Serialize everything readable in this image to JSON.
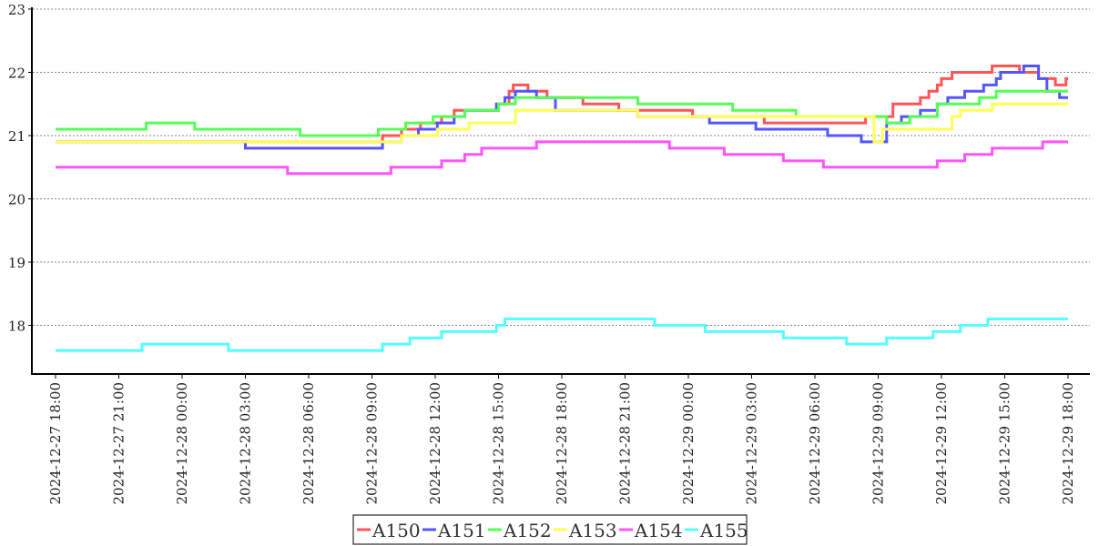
{
  "chart_data": {
    "type": "line",
    "title": "",
    "xlabel": "",
    "ylabel": "",
    "ylim": [
      17.23,
      23
    ],
    "yticks": [
      "18",
      "19",
      "20",
      "21",
      "22",
      "23"
    ],
    "xlim_hours": [
      0,
      48
    ],
    "x_tick_labels": [
      "2024-12-27 18:00",
      "2024-12-27 21:00",
      "2024-12-28 00:00",
      "2024-12-28 03:00",
      "2024-12-28 06:00",
      "2024-12-28 09:00",
      "2024-12-28 12:00",
      "2024-12-28 15:00",
      "2024-12-28 18:00",
      "2024-12-28 21:00",
      "2024-12-29 00:00",
      "2024-12-29 03:00",
      "2024-12-29 06:00",
      "2024-12-29 09:00",
      "2024-12-29 12:00",
      "2024-12-29 15:00",
      "2024-12-29 18:00"
    ],
    "grid": "horizontal dashed",
    "legend_position": "bottom-center",
    "x_unit_note": "series points are [hours since 2024-12-27 18:00, value], step-wise",
    "series": [
      {
        "name": "A150",
        "color": "#ff5555",
        "points": [
          [
            0,
            20.9
          ],
          [
            15.5,
            21.0
          ],
          [
            16.4,
            21.1
          ],
          [
            17.3,
            21.2
          ],
          [
            18.3,
            21.3
          ],
          [
            18.9,
            21.4
          ],
          [
            21.0,
            21.5
          ],
          [
            21.5,
            21.7
          ],
          [
            21.7,
            21.8
          ],
          [
            22.4,
            21.7
          ],
          [
            23.3,
            21.6
          ],
          [
            25.0,
            21.5
          ],
          [
            26.7,
            21.4
          ],
          [
            30.2,
            21.3
          ],
          [
            33.6,
            21.2
          ],
          [
            38.4,
            21.3
          ],
          [
            39.7,
            21.5
          ],
          [
            41.0,
            21.6
          ],
          [
            41.4,
            21.7
          ],
          [
            41.8,
            21.8
          ],
          [
            42.0,
            21.9
          ],
          [
            42.5,
            22.0
          ],
          [
            44.4,
            22.1
          ],
          [
            45.7,
            22.0
          ],
          [
            46.6,
            21.9
          ],
          [
            47.4,
            21.8
          ],
          [
            47.9,
            21.9
          ],
          [
            48,
            21.9
          ]
        ]
      },
      {
        "name": "A151",
        "color": "#5555ff",
        "points": [
          [
            0,
            20.9
          ],
          [
            9.0,
            20.8
          ],
          [
            15.5,
            20.9
          ],
          [
            16.4,
            21.0
          ],
          [
            17.2,
            21.1
          ],
          [
            18.1,
            21.2
          ],
          [
            18.9,
            21.3
          ],
          [
            19.4,
            21.4
          ],
          [
            20.9,
            21.5
          ],
          [
            21.3,
            21.6
          ],
          [
            21.8,
            21.7
          ],
          [
            22.8,
            21.6
          ],
          [
            23.7,
            21.4
          ],
          [
            27.6,
            21.3
          ],
          [
            31.0,
            21.2
          ],
          [
            33.2,
            21.1
          ],
          [
            36.6,
            21.0
          ],
          [
            38.2,
            20.9
          ],
          [
            39.4,
            21.2
          ],
          [
            40.1,
            21.3
          ],
          [
            41.0,
            21.4
          ],
          [
            41.8,
            21.5
          ],
          [
            42.3,
            21.6
          ],
          [
            43.1,
            21.7
          ],
          [
            44.0,
            21.8
          ],
          [
            44.6,
            21.9
          ],
          [
            44.8,
            22.0
          ],
          [
            45.9,
            22.1
          ],
          [
            46.6,
            21.9
          ],
          [
            47.0,
            21.7
          ],
          [
            47.6,
            21.6
          ],
          [
            48,
            21.6
          ]
        ]
      },
      {
        "name": "A152",
        "color": "#55ff55",
        "points": [
          [
            0,
            21.1
          ],
          [
            4.3,
            21.2
          ],
          [
            6.6,
            21.1
          ],
          [
            11.6,
            21.0
          ],
          [
            15.3,
            21.1
          ],
          [
            16.6,
            21.2
          ],
          [
            17.9,
            21.3
          ],
          [
            19.4,
            21.4
          ],
          [
            21.0,
            21.5
          ],
          [
            21.8,
            21.6
          ],
          [
            27.6,
            21.5
          ],
          [
            32.1,
            21.4
          ],
          [
            35.1,
            21.3
          ],
          [
            39.4,
            21.2
          ],
          [
            40.5,
            21.3
          ],
          [
            41.8,
            21.5
          ],
          [
            43.8,
            21.6
          ],
          [
            44.6,
            21.7
          ],
          [
            48,
            21.7
          ]
        ]
      },
      {
        "name": "A153",
        "color": "#ffff55",
        "points": [
          [
            0,
            20.9
          ],
          [
            16.4,
            21.0
          ],
          [
            18.1,
            21.1
          ],
          [
            19.6,
            21.2
          ],
          [
            21.8,
            21.4
          ],
          [
            27.6,
            21.3
          ],
          [
            38.8,
            20.9
          ],
          [
            39.2,
            21.1
          ],
          [
            42.5,
            21.3
          ],
          [
            42.9,
            21.4
          ],
          [
            44.4,
            21.5
          ],
          [
            48,
            21.5
          ]
        ]
      },
      {
        "name": "A154",
        "color": "#ff55ff",
        "points": [
          [
            0,
            20.5
          ],
          [
            11.0,
            20.4
          ],
          [
            15.9,
            20.5
          ],
          [
            18.3,
            20.6
          ],
          [
            19.4,
            20.7
          ],
          [
            20.2,
            20.8
          ],
          [
            22.8,
            20.9
          ],
          [
            29.1,
            20.8
          ],
          [
            31.7,
            20.7
          ],
          [
            34.5,
            20.6
          ],
          [
            36.4,
            20.5
          ],
          [
            41.8,
            20.6
          ],
          [
            43.1,
            20.7
          ],
          [
            44.4,
            20.8
          ],
          [
            46.8,
            20.9
          ],
          [
            48,
            20.9
          ]
        ]
      },
      {
        "name": "A155",
        "color": "#55ffff",
        "points": [
          [
            0,
            17.6
          ],
          [
            4.1,
            17.7
          ],
          [
            8.2,
            17.6
          ],
          [
            15.5,
            17.7
          ],
          [
            16.8,
            17.8
          ],
          [
            18.3,
            17.9
          ],
          [
            20.9,
            18.0
          ],
          [
            21.3,
            18.1
          ],
          [
            28.4,
            18.0
          ],
          [
            30.8,
            17.9
          ],
          [
            34.5,
            17.8
          ],
          [
            37.5,
            17.7
          ],
          [
            39.4,
            17.8
          ],
          [
            41.6,
            17.9
          ],
          [
            42.9,
            18.0
          ],
          [
            44.2,
            18.1
          ],
          [
            48,
            18.1
          ]
        ]
      }
    ]
  }
}
